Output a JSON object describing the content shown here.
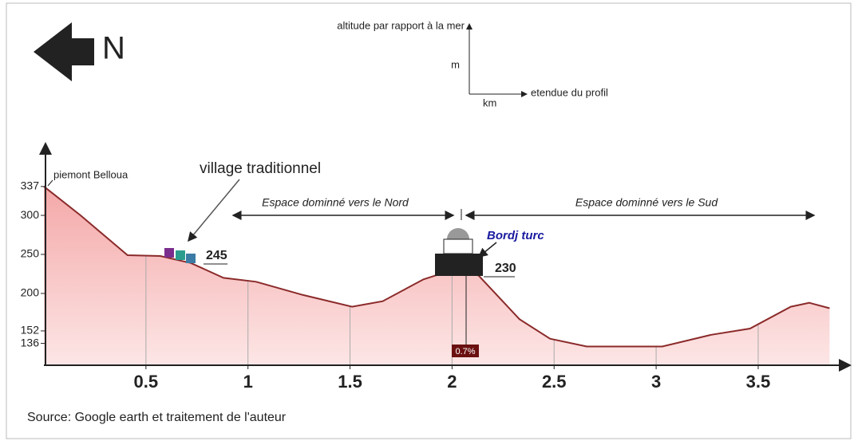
{
  "chart_data": {
    "type": "area",
    "x": [
      0,
      0.18,
      0.41,
      0.57,
      0.72,
      0.88,
      1.04,
      1.27,
      1.51,
      1.66,
      1.86,
      1.99,
      2.13,
      2.33,
      2.48,
      2.66,
      3.03,
      3.27,
      3.46,
      3.66,
      3.75,
      3.85
    ],
    "values": [
      337,
      300,
      249,
      248,
      239,
      220,
      215,
      198,
      183,
      190,
      218,
      229,
      223,
      167,
      142,
      132,
      132,
      147,
      155,
      183,
      188,
      181
    ],
    "xlim": [
      0,
      3.95
    ],
    "ylim": [
      108,
      392
    ],
    "xticks": [
      0.5,
      1,
      1.5,
      2,
      2.5,
      3,
      3.5
    ],
    "yticks": [
      136,
      152,
      200,
      250,
      300,
      337
    ],
    "color": "#8b2a2a",
    "fill": "#f6bcbc",
    "grid": true,
    "annotations": {
      "north": "N",
      "legend_y": "altitude par rapport à la mer",
      "legend_m": "m",
      "legend_km": "km",
      "legend_x": "etendue du profil",
      "start": "piemont Belloua",
      "village": "village traditionnel",
      "village_alt": "245",
      "north_zone": "Espace dominné vers le Nord",
      "south_zone": "Espace dominné vers le Sud",
      "bordj": "Bordj turc",
      "bordj_alt": "230",
      "slope": "0.7%",
      "source": "Source: Google earth et traitement de l'auteur"
    }
  }
}
